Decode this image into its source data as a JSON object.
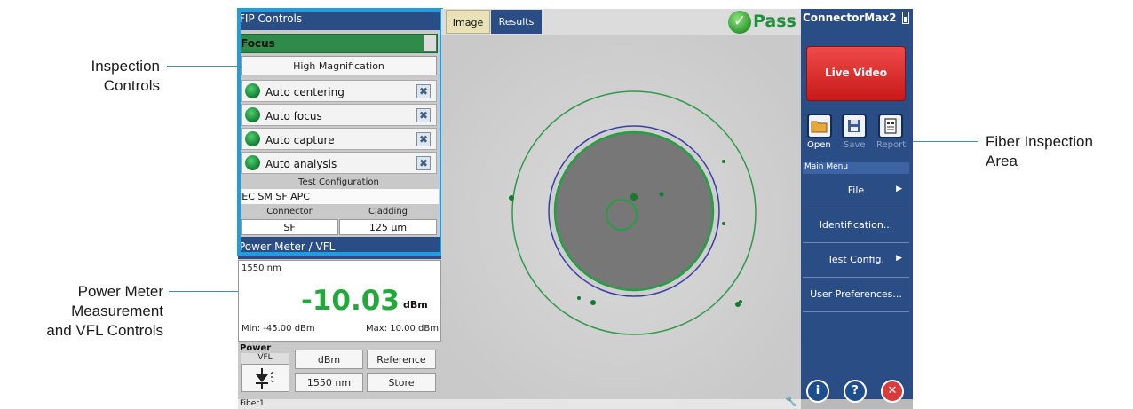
{
  "annotations": {
    "inspection_controls": [
      "Inspection",
      "Controls"
    ],
    "power_meter": [
      "Power Meter",
      "Measurement",
      "and VFL Controls"
    ],
    "fiber_area": [
      "Fiber Inspection",
      "Area"
    ]
  },
  "fip": {
    "header": "FIP Controls",
    "focus_label": "Focus",
    "high_mag_label": "High Magnification",
    "auto_items": [
      "Auto centering",
      "Auto focus",
      "Auto capture",
      "Auto analysis"
    ],
    "test_config_title": "Test Configuration",
    "test_config_value": "IEC SM SF APC",
    "connector_label": "Connector",
    "connector_value": "SF",
    "cladding_label": "Cladding",
    "cladding_value": "125 µm"
  },
  "power": {
    "header": "Power Meter / VFL",
    "wavelength": "1550 nm",
    "value": "-10.03",
    "unit": "dBm",
    "min": "Min: -45.00 dBm",
    "max": "Max: 10.00 dBm",
    "section_label": "Power",
    "vfl_label": "VFL",
    "dbm_button": "dBm",
    "reference_button": "Reference",
    "wavelength_button": "1550 nm",
    "store_button": "Store"
  },
  "tabs": [
    "Image",
    "Results"
  ],
  "result": "Pass",
  "right_panel": {
    "title": "ConnectorMax2",
    "live_video": "Live Video",
    "open": "Open",
    "save": "Save",
    "report": "Report",
    "main_menu": "Main Menu",
    "menu": [
      "File",
      "Identification...",
      "Test Config.",
      "User Preferences..."
    ]
  },
  "status": {
    "text": "Fiber1"
  },
  "colors": {
    "accent": "#2a4d85",
    "pass": "#1f8f3e",
    "live_video": "#d92b2b",
    "highlight": "#1e9de0"
  }
}
